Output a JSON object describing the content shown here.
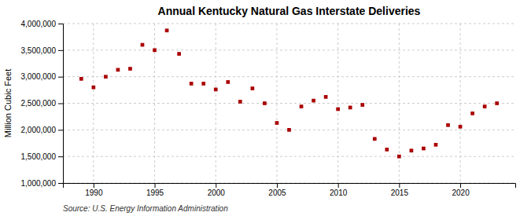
{
  "chart_data": {
    "type": "scatter",
    "title": "Annual Kentucky Natural Gas Interstate Deliveries",
    "ylabel": "Million Cubic Feet",
    "annotations": [
      "Source: U.S. Energy Information Administration"
    ],
    "x": [
      1989,
      1990,
      1991,
      1992,
      1993,
      1994,
      1995,
      1996,
      1997,
      1998,
      1999,
      2000,
      2001,
      2002,
      2003,
      2004,
      2005,
      2006,
      2007,
      2008,
      2009,
      2010,
      2011,
      2012,
      2013,
      2014,
      2015,
      2016,
      2017,
      2018,
      2019,
      2020,
      2021,
      2022,
      2023
    ],
    "values": [
      2960000,
      2800000,
      3000000,
      3130000,
      3150000,
      3600000,
      3500000,
      3870000,
      3430000,
      2870000,
      2870000,
      2760000,
      2900000,
      2530000,
      2780000,
      2500000,
      2130000,
      2000000,
      2440000,
      2550000,
      2620000,
      2390000,
      2420000,
      2470000,
      1830000,
      1630000,
      1500000,
      1610000,
      1650000,
      1720000,
      2090000,
      2060000,
      2310000,
      2440000,
      2500000
    ],
    "color": "#aa0000",
    "marker": "square",
    "xlim": [
      1987.5,
      2024.5
    ],
    "ylim": [
      1000000,
      4000000
    ],
    "xticks": [
      1990,
      1995,
      2000,
      2005,
      2010,
      2015,
      2020
    ],
    "yticks": [
      {
        "value": 1000000,
        "label": "1,000,000"
      },
      {
        "value": 1500000,
        "label": "1,500,000"
      },
      {
        "value": 2000000,
        "label": "2,000,000"
      },
      {
        "value": 2500000,
        "label": "2,500,000"
      },
      {
        "value": 3000000,
        "label": "3,000,000"
      },
      {
        "value": 3500000,
        "label": "3,500,000"
      },
      {
        "value": 4000000,
        "label": "4,000,000"
      }
    ],
    "grid": true
  }
}
